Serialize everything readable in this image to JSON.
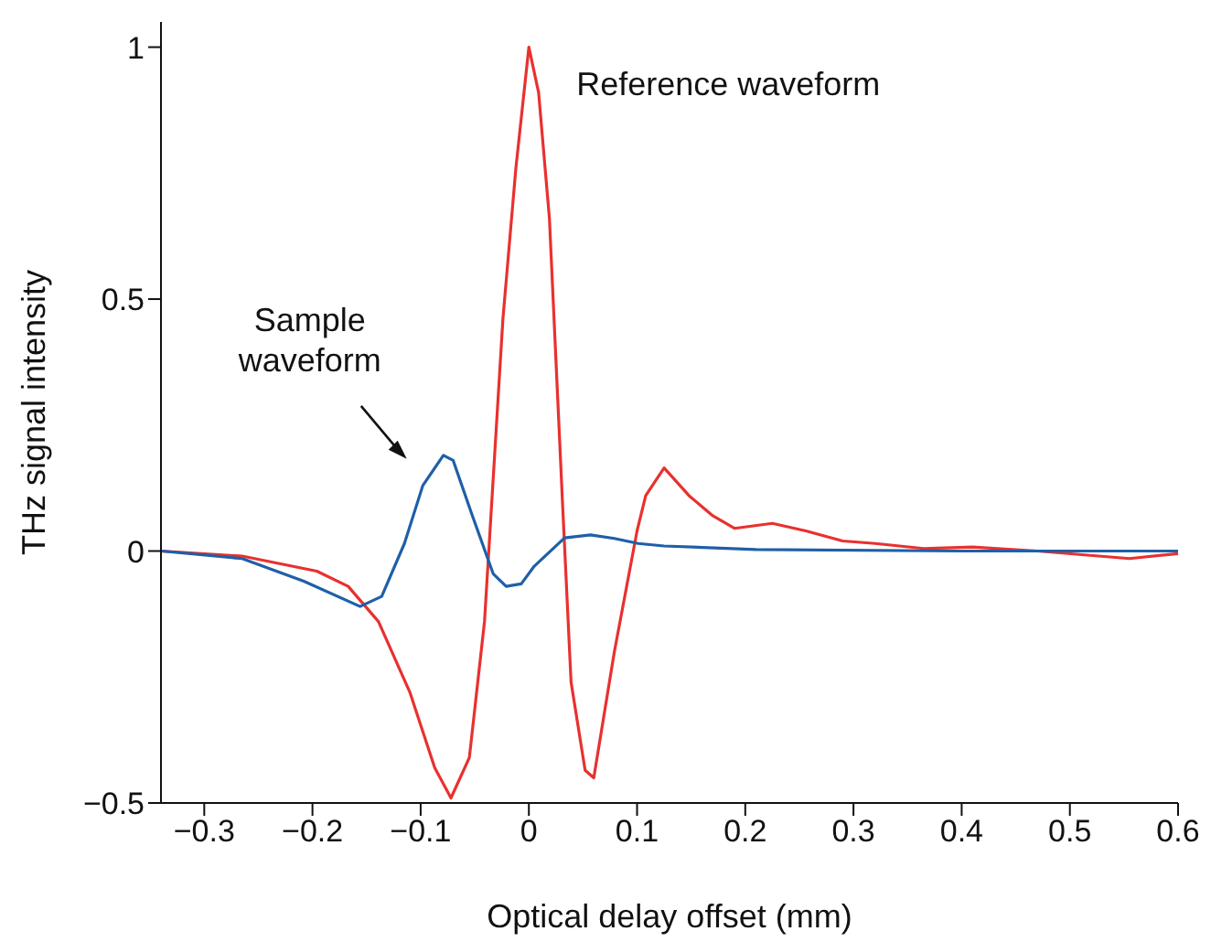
{
  "chart_data": {
    "type": "line",
    "xlabel": "Optical delay offset (mm)",
    "ylabel": "THz signal intensity",
    "xlim": [
      -0.34,
      0.6
    ],
    "ylim": [
      -0.5,
      1.05
    ],
    "xticks": [
      {
        "value": -0.3,
        "label": "−0.3"
      },
      {
        "value": -0.2,
        "label": "−0.2"
      },
      {
        "value": -0.1,
        "label": "−0.1"
      },
      0,
      0.1,
      0.2,
      0.3,
      0.4,
      0.5,
      0.6
    ],
    "yticks": [
      {
        "value": -0.5,
        "label": "−0.5"
      },
      0,
      0.5,
      1
    ],
    "grid": false,
    "legend": false,
    "marker": "none",
    "line_style": "solid",
    "series": [
      {
        "name": "Reference waveform",
        "color": "#e8312f",
        "x": [
          -0.34,
          -0.265,
          -0.196,
          -0.167,
          -0.139,
          -0.11,
          -0.087,
          -0.072,
          -0.055,
          -0.041,
          -0.024,
          -0.012,
          0,
          0.009,
          0.019,
          0.031,
          0.039,
          0.052,
          0.06,
          0.079,
          0.1,
          0.108,
          0.125,
          0.148,
          0.17,
          0.19,
          0.225,
          0.256,
          0.29,
          0.32,
          0.365,
          0.41,
          0.47,
          0.555,
          0.6
        ],
        "values": [
          0,
          -0.01,
          -0.04,
          -0.07,
          -0.14,
          -0.28,
          -0.43,
          -0.49,
          -0.41,
          -0.14,
          0.46,
          0.76,
          1.0,
          0.91,
          0.66,
          0.1,
          -0.26,
          -0.435,
          -0.45,
          -0.2,
          0.04,
          0.11,
          0.165,
          0.11,
          0.07,
          0.045,
          0.055,
          0.04,
          0.02,
          0.015,
          0.005,
          0.008,
          0,
          -0.015,
          -0.005
        ]
      },
      {
        "name": "Sample waveform",
        "color": "#1f5fa8",
        "x": [
          -0.34,
          -0.265,
          -0.208,
          -0.156,
          -0.136,
          -0.115,
          -0.098,
          -0.079,
          -0.07,
          -0.053,
          -0.033,
          -0.021,
          -0.007,
          0.005,
          0.033,
          0.057,
          0.079,
          0.101,
          0.125,
          0.21,
          0.4,
          0.6
        ],
        "values": [
          0,
          -0.015,
          -0.06,
          -0.11,
          -0.09,
          0.015,
          0.13,
          0.19,
          0.18,
          0.075,
          -0.045,
          -0.07,
          -0.065,
          -0.03,
          0.026,
          0.032,
          0.025,
          0.015,
          0.01,
          0.003,
          0,
          0
        ]
      }
    ]
  }
}
